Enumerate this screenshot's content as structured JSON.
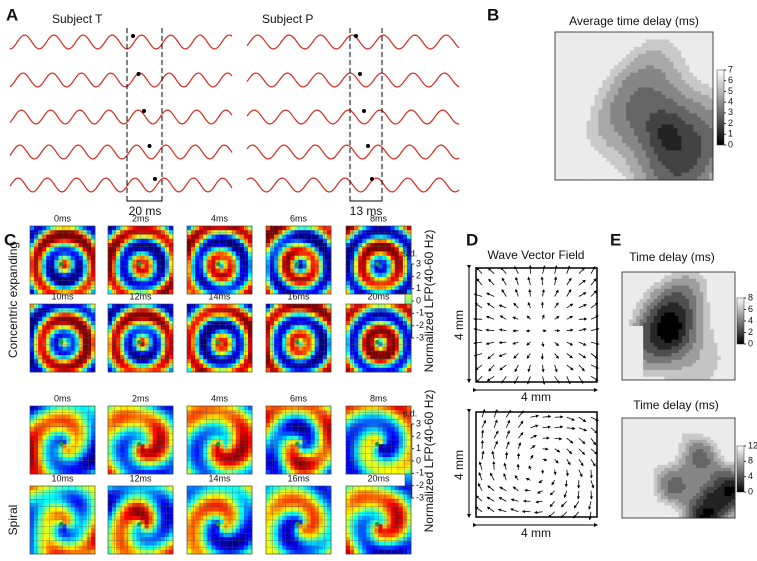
{
  "panel_a": {
    "label": "A",
    "subjects": [
      {
        "name": "Subject T",
        "delay": "20 ms"
      },
      {
        "name": "Subject P",
        "delay": "13 ms"
      }
    ]
  },
  "panel_b": {
    "label": "B",
    "title": "Average time delay (ms)",
    "colorbar_ticks": [
      7,
      6,
      5,
      4,
      3,
      2,
      1,
      0
    ]
  },
  "panel_c": {
    "label": "C",
    "unit": "s.d.",
    "colorbar_title": "Normalized LFP(40-60 Hz)",
    "colorbar_ticks": [
      3,
      2,
      1,
      0,
      -1,
      -2,
      -3
    ],
    "groups": [
      {
        "name": "Concentric expanding",
        "frames": [
          "0ms",
          "2ms",
          "4ms",
          "6ms",
          "8ms",
          "10ms",
          "12ms",
          "14ms",
          "16ms",
          "20ms"
        ]
      },
      {
        "name": "Spiral",
        "frames": [
          "0ms",
          "2ms",
          "4ms",
          "6ms",
          "8ms",
          "10ms",
          "12ms",
          "14ms",
          "16ms",
          "20ms"
        ]
      }
    ]
  },
  "panel_d": {
    "label": "D",
    "title": "Wave Vector Field",
    "scale": "4 mm"
  },
  "panel_e": {
    "label": "E",
    "maps": [
      {
        "title": "Time delay (ms)",
        "colorbar_ticks": [
          8,
          6,
          4,
          2,
          0
        ]
      },
      {
        "title": "Time delay (ms)",
        "colorbar_ticks": [
          12,
          8,
          4,
          0
        ]
      }
    ]
  }
}
